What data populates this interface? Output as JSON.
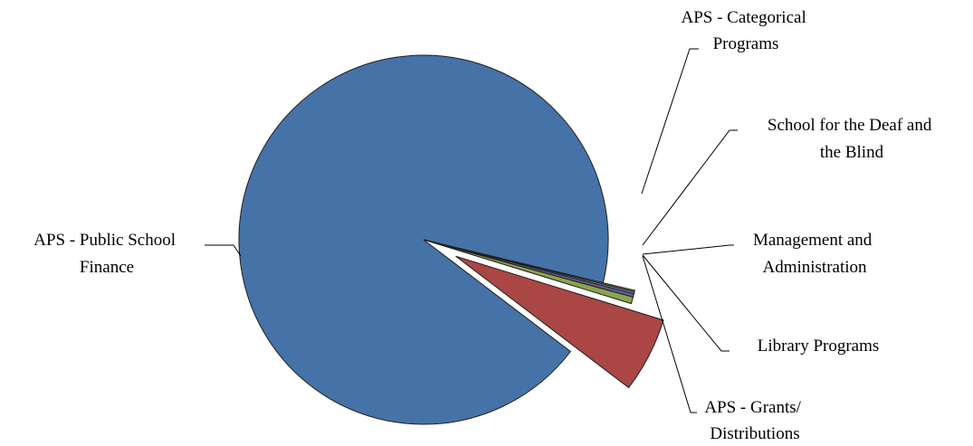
{
  "chart_data": {
    "type": "pie",
    "title": "",
    "legend": "none",
    "slices": [
      {
        "name": "APS - Public School Finance",
        "label_lines": [
          "APS - Public School",
          "Finance"
        ],
        "value": 93.4,
        "color": "#4573A7"
      },
      {
        "name": "APS - Categorical Programs",
        "label_lines": [
          "APS - Categorical",
          "Programs"
        ],
        "value": 5.6,
        "color": "#AA4644"
      },
      {
        "name": "School for the Deaf and the Blind",
        "label_lines": [
          "School for the Deaf and",
          "the Blind"
        ],
        "value": 0.5,
        "color": "#89A54E"
      },
      {
        "name": "Management and Administration",
        "label_lines": [
          "Management and",
          "Administration"
        ],
        "value": 0.25,
        "color": "#71588F"
      },
      {
        "name": "Library Programs",
        "label_lines": [
          "Library Programs"
        ],
        "value": 0.15,
        "color": "#4198AF"
      },
      {
        "name": "APS - Grants/ Distributions",
        "label_lines": [
          "APS - Grants/",
          "Distributions"
        ],
        "value": 0.1,
        "color": "#DB843D"
      }
    ]
  }
}
